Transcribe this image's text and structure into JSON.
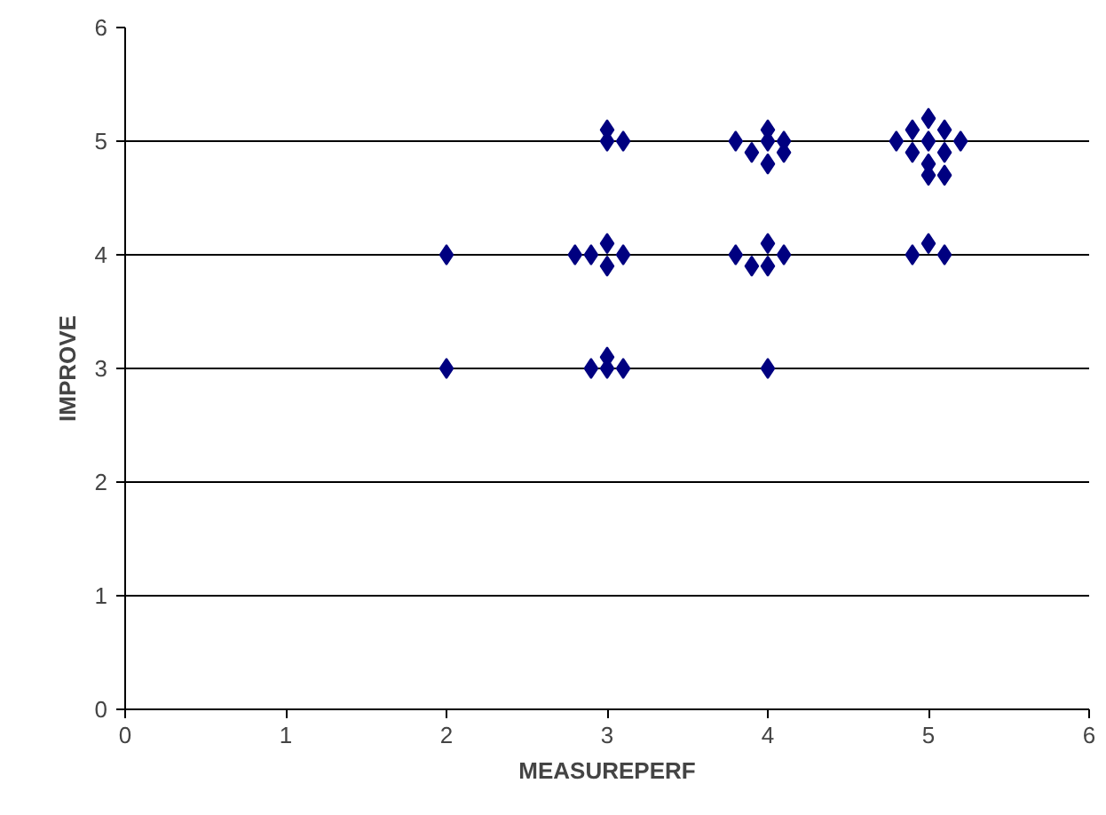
{
  "chart_data": {
    "type": "scatter",
    "xlabel": "MEASUREPERF",
    "ylabel": "IMPROVE",
    "x": [
      2,
      2,
      2.9,
      3,
      3,
      3.1,
      4,
      2.8,
      2.9,
      3,
      3,
      3.1,
      3.8,
      3.9,
      4,
      4,
      4.1,
      4.9,
      5,
      5.1,
      3,
      3,
      3.1,
      3.8,
      3.9,
      4,
      4,
      4.1,
      4,
      4.1,
      4.8,
      4.9,
      4.9,
      5,
      5,
      5,
      5.1,
      5.1,
      5.2,
      5,
      5.1
    ],
    "values": [
      4,
      3,
      3,
      3.1,
      3,
      3,
      3,
      4,
      4,
      4.1,
      3.9,
      4,
      4,
      3.9,
      4.1,
      3.9,
      4,
      4,
      4.1,
      4,
      5.1,
      5,
      5,
      5,
      4.9,
      5.1,
      5,
      5,
      4.8,
      4.9,
      5,
      5.1,
      4.9,
      5.2,
      5,
      4.8,
      5.1,
      4.9,
      5,
      4.7,
      4.7
    ],
    "color": "#000080",
    "marker": "diamond",
    "xlim": [
      0,
      6
    ],
    "ylim": [
      0,
      6
    ],
    "xticks": [
      0,
      1,
      2,
      3,
      4,
      5,
      6
    ],
    "yticks": [
      0,
      1,
      2,
      3,
      4,
      5,
      6
    ],
    "grid": "y"
  }
}
